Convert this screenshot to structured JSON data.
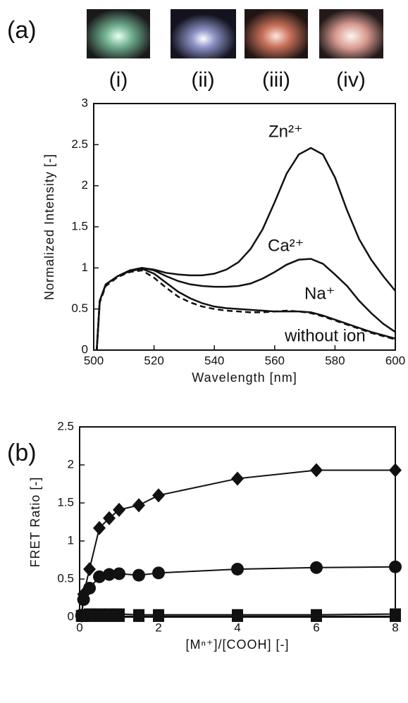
{
  "photo_labels": [
    "(i)",
    "(ii)",
    "(iii)",
    "(iv)"
  ],
  "chart_data": [
    {
      "type": "line",
      "panel_label": "(a)",
      "x_label": "Wavelength [nm]",
      "y_label": "Normalized Intensity [-]",
      "x": [
        501,
        502,
        504,
        508,
        512,
        516,
        520,
        524,
        528,
        532,
        536,
        540,
        544,
        548,
        552,
        556,
        560,
        564,
        568,
        572,
        576,
        580,
        584,
        588,
        592,
        596,
        600
      ],
      "series": [
        {
          "name": "Zn²⁺",
          "color": "#111111",
          "dash": false,
          "values": [
            0,
            0.6,
            0.8,
            0.9,
            0.97,
            1.0,
            0.98,
            0.94,
            0.92,
            0.91,
            0.91,
            0.93,
            0.98,
            1.07,
            1.23,
            1.47,
            1.8,
            2.15,
            2.38,
            2.46,
            2.38,
            2.1,
            1.7,
            1.35,
            1.1,
            0.9,
            0.72
          ]
        },
        {
          "name": "Ca²⁺",
          "color": "#111111",
          "dash": false,
          "values": [
            0,
            0.6,
            0.8,
            0.9,
            0.97,
            1.0,
            0.97,
            0.9,
            0.84,
            0.8,
            0.78,
            0.77,
            0.77,
            0.78,
            0.81,
            0.87,
            0.95,
            1.04,
            1.1,
            1.11,
            1.05,
            0.92,
            0.78,
            0.6,
            0.45,
            0.32,
            0.22
          ]
        },
        {
          "name": "Na⁺",
          "color": "#111111",
          "dash": false,
          "values": [
            0,
            0.6,
            0.8,
            0.9,
            0.96,
            0.99,
            0.93,
            0.82,
            0.71,
            0.63,
            0.57,
            0.53,
            0.51,
            0.5,
            0.49,
            0.48,
            0.47,
            0.47,
            0.47,
            0.46,
            0.42,
            0.37,
            0.32,
            0.27,
            0.22,
            0.18,
            0.14
          ]
        },
        {
          "name": "without ion",
          "color": "#111111",
          "dash": true,
          "values": [
            0,
            0.58,
            0.78,
            0.89,
            0.95,
            0.97,
            0.88,
            0.76,
            0.65,
            0.58,
            0.53,
            0.5,
            0.48,
            0.47,
            0.46,
            0.46,
            0.47,
            0.48,
            0.47,
            0.45,
            0.41,
            0.36,
            0.31,
            0.26,
            0.21,
            0.17,
            0.13
          ]
        }
      ],
      "xlim": [
        500,
        600
      ],
      "xticks": [
        500,
        520,
        540,
        560,
        580,
        600
      ],
      "ylim": [
        0,
        3
      ],
      "yticks": [
        0,
        0.5,
        1,
        1.5,
        2,
        2.5,
        3
      ]
    },
    {
      "type": "scatter",
      "panel_label": "(b)",
      "x_label": "[Mⁿ⁺]/[COOH] [-]",
      "y_label": "FRET Ratio [-]",
      "x": [
        0.05,
        0.1,
        0.25,
        0.5,
        0.75,
        1,
        1.5,
        2,
        4,
        6,
        8
      ],
      "series": [
        {
          "marker": "diamond",
          "color": "#111111",
          "values": [
            0.02,
            0.3,
            0.63,
            1.17,
            1.3,
            1.41,
            1.47,
            1.6,
            1.82,
            1.93,
            1.93
          ]
        },
        {
          "marker": "circle",
          "color": "#111111",
          "values": [
            0.02,
            0.23,
            0.38,
            0.53,
            0.56,
            0.57,
            0.55,
            0.58,
            0.63,
            0.65,
            0.66
          ]
        },
        {
          "marker": "square",
          "color": "#111111",
          "values": [
            0.02,
            0.03,
            0.04,
            0.04,
            0.04,
            0.04,
            0.03,
            0.03,
            0.03,
            0.03,
            0.04
          ]
        },
        {
          "marker": "square",
          "color": "#111111",
          "values": [
            0.01,
            0.01,
            0.01,
            0.01,
            0.01,
            0.01,
            0.01,
            0.01,
            0.01,
            0.01,
            0.01
          ]
        }
      ],
      "xlim": [
        0,
        8
      ],
      "xticks": [
        0,
        2,
        4,
        6,
        8
      ],
      "ylim": [
        0,
        2.5
      ],
      "yticks": [
        0,
        0.5,
        1,
        1.5,
        2,
        2.5
      ]
    }
  ]
}
